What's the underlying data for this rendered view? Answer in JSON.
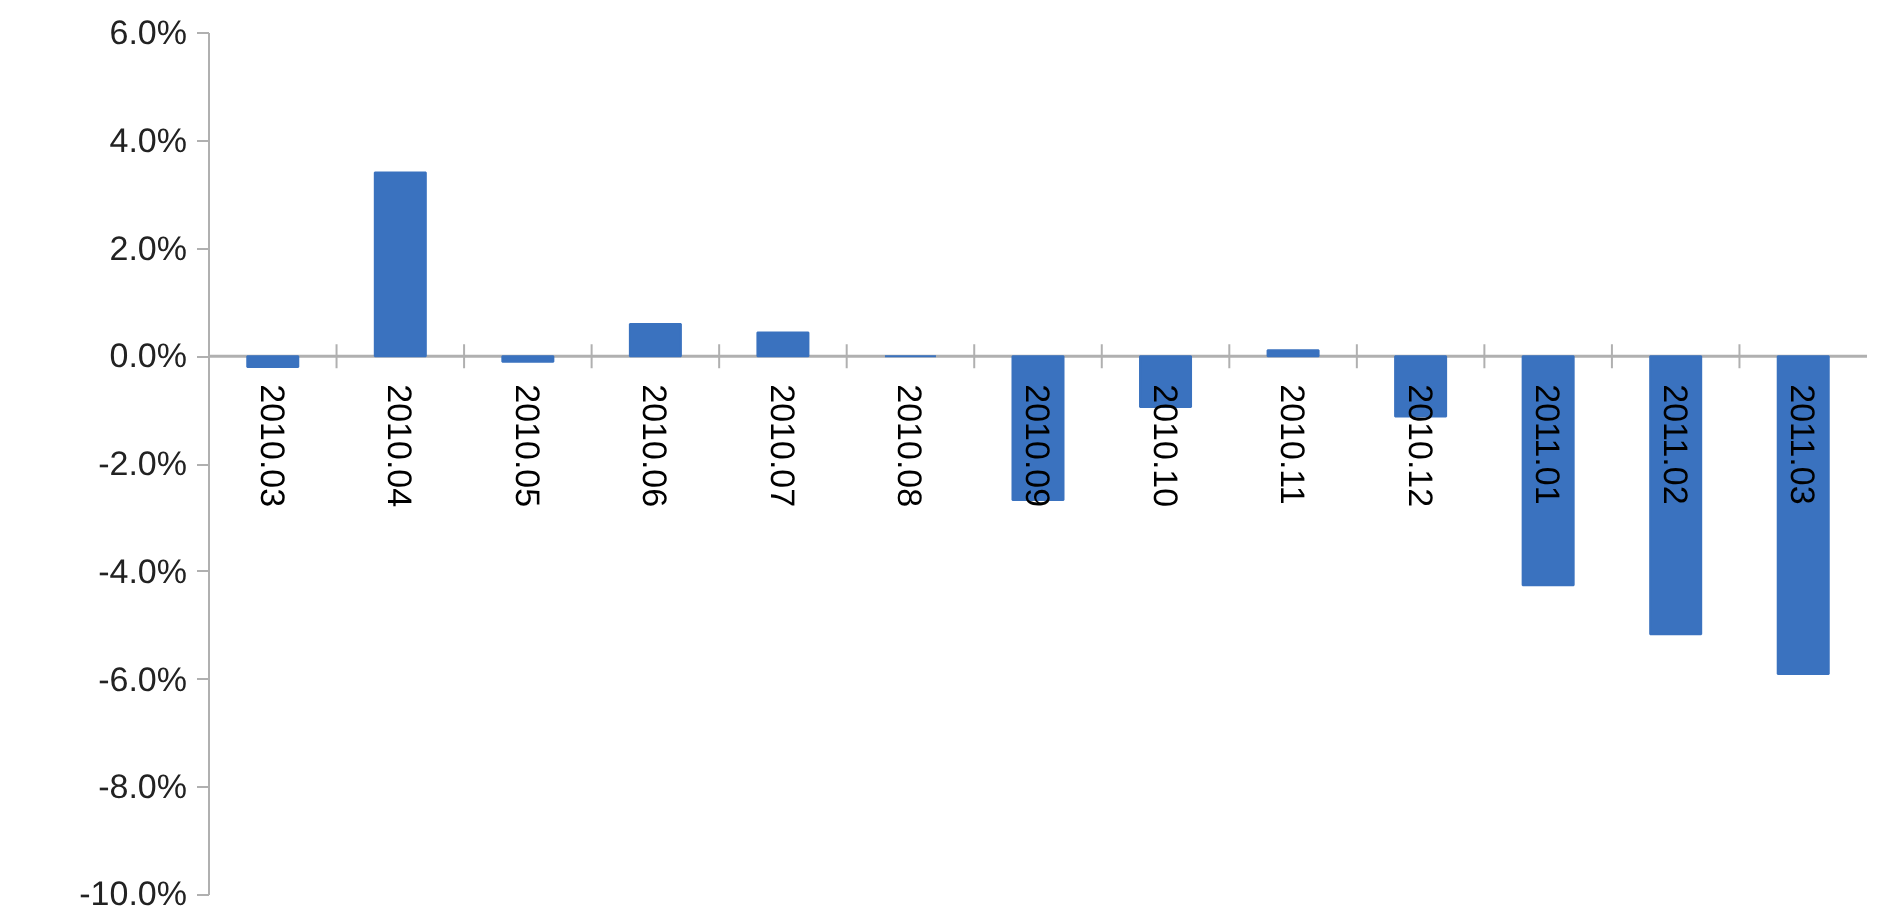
{
  "chart_data": {
    "type": "bar",
    "categories": [
      "2010.03",
      "2010.04",
      "2010.05",
      "2010.06",
      "2010.07",
      "2010.08",
      "2010.09",
      "2010.10",
      "2010.11",
      "2010.12",
      "2011.01",
      "2011.02",
      "2011.03"
    ],
    "values": [
      -0.2,
      3.41,
      -0.1,
      0.6,
      0.44,
      0,
      -2.67,
      -0.94,
      0.11,
      -1.12,
      -4.25,
      -5.16,
      -5.9
    ],
    "color": "#3a72bf",
    "ylim": [
      -10,
      6
    ],
    "yticks": [
      {
        "value": -10,
        "label": "-10.0%"
      },
      {
        "value": -8,
        "label": "-8.0%"
      },
      {
        "value": -6,
        "label": "-6.0%"
      },
      {
        "value": -4,
        "label": "-4.0%"
      },
      {
        "value": -2,
        "label": "-2.0%"
      },
      {
        "value": 0,
        "label": "0.0%"
      },
      {
        "value": 2,
        "label": "2.0%"
      },
      {
        "value": 4,
        "label": "4.0%"
      },
      {
        "value": 6,
        "label": "6.0%"
      }
    ],
    "grid": false
  }
}
